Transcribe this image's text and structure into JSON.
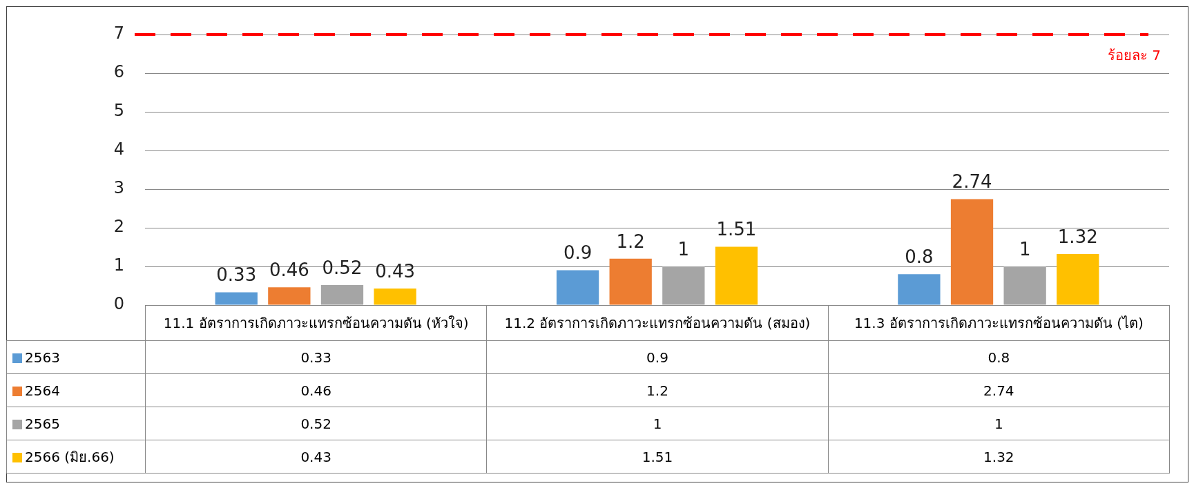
{
  "chart_data": {
    "type": "bar",
    "categories": [
      "11.1 อัตราการเกิดภาวะแทรกซ้อนความดัน (หัวใจ)",
      "11.2 อัตราการเกิดภาวะแทรกซ้อนความดัน (สมอง)",
      "11.3 อัตราการเกิดภาวะแทรกซ้อนความดัน (ไต)"
    ],
    "series": [
      {
        "name": "2563",
        "color": "#5b9bd5",
        "values": [
          0.33,
          0.9,
          0.8
        ],
        "value_labels": [
          "0.33",
          "0.9",
          "0.8"
        ]
      },
      {
        "name": "2564",
        "color": "#ed7d31",
        "values": [
          0.46,
          1.2,
          2.74
        ],
        "value_labels": [
          "0.46",
          "1.2",
          "2.74"
        ]
      },
      {
        "name": "2565",
        "color": "#a5a5a5",
        "values": [
          0.52,
          1,
          1
        ],
        "value_labels": [
          "0.52",
          "1",
          "1"
        ]
      },
      {
        "name": "2566 (มิย.66)",
        "color": "#ffc000",
        "values": [
          0.43,
          1.51,
          1.32
        ],
        "value_labels": [
          "0.43",
          "1.51",
          "1.32"
        ]
      }
    ],
    "ylim": [
      0,
      7
    ],
    "yticks": [
      0,
      1,
      2,
      3,
      4,
      5,
      6,
      7
    ],
    "grid": "y",
    "legend": "bottom",
    "annotations": [
      "0.33",
      "0.9",
      "0.8",
      "0.46",
      "1.2",
      "2.74",
      "0.52",
      "1",
      "1",
      "0.43",
      "1.51",
      "1.32"
    ],
    "ref_lines": [
      {
        "axis": "y",
        "value": 7,
        "label": "ร้อยละ 7",
        "color": "#ff0000",
        "line_style": "dashed"
      }
    ]
  }
}
